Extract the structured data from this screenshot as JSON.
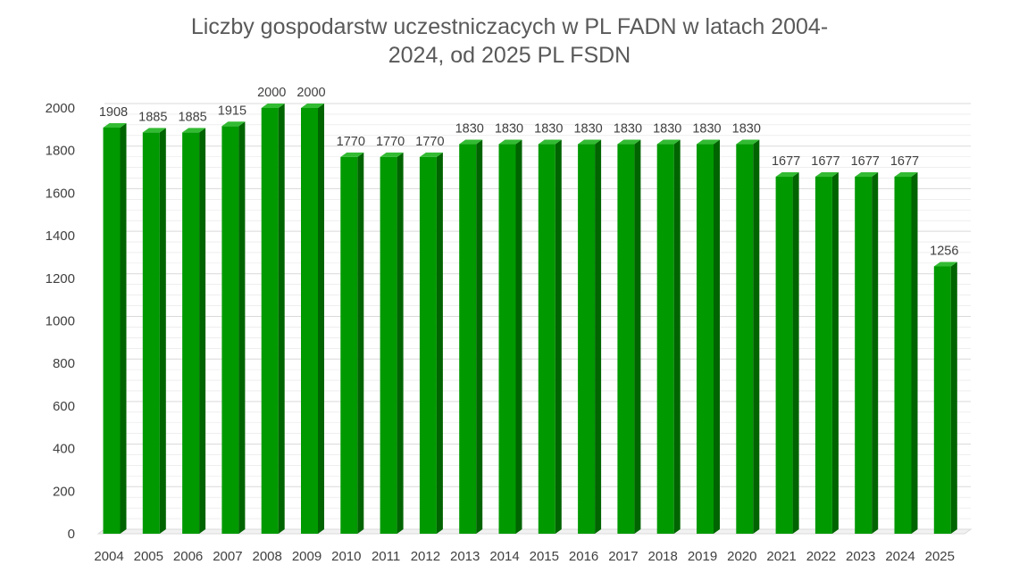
{
  "chart_data": {
    "type": "bar",
    "title_lines": [
      "Liczby gospodarstw uczestniczacych w PL FADN w latach 2004-",
      "2024, od 2025 PL FSDN"
    ],
    "categories": [
      "2004",
      "2005",
      "2006",
      "2007",
      "2008",
      "2009",
      "2010",
      "2011",
      "2012",
      "2013",
      "2014",
      "2015",
      "2016",
      "2017",
      "2018",
      "2019",
      "2020",
      "2021",
      "2022",
      "2023",
      "2024",
      "2025"
    ],
    "values": [
      1908,
      1885,
      1885,
      1915,
      2000,
      2000,
      1770,
      1770,
      1770,
      1830,
      1830,
      1830,
      1830,
      1830,
      1830,
      1830,
      1830,
      1677,
      1677,
      1677,
      1677,
      1256
    ],
    "ylim": [
      0,
      2000
    ],
    "yticks": [
      0,
      200,
      400,
      600,
      800,
      1000,
      1200,
      1400,
      1600,
      1800,
      2000
    ],
    "xlabel": "",
    "ylabel": "",
    "grid": true,
    "legend": "none",
    "colors": {
      "bar_front": "#009900",
      "bar_side": "#006400",
      "bar_top": "#33bb33",
      "grid": "#d9d9d9",
      "floor": "#d9d9d9"
    }
  }
}
